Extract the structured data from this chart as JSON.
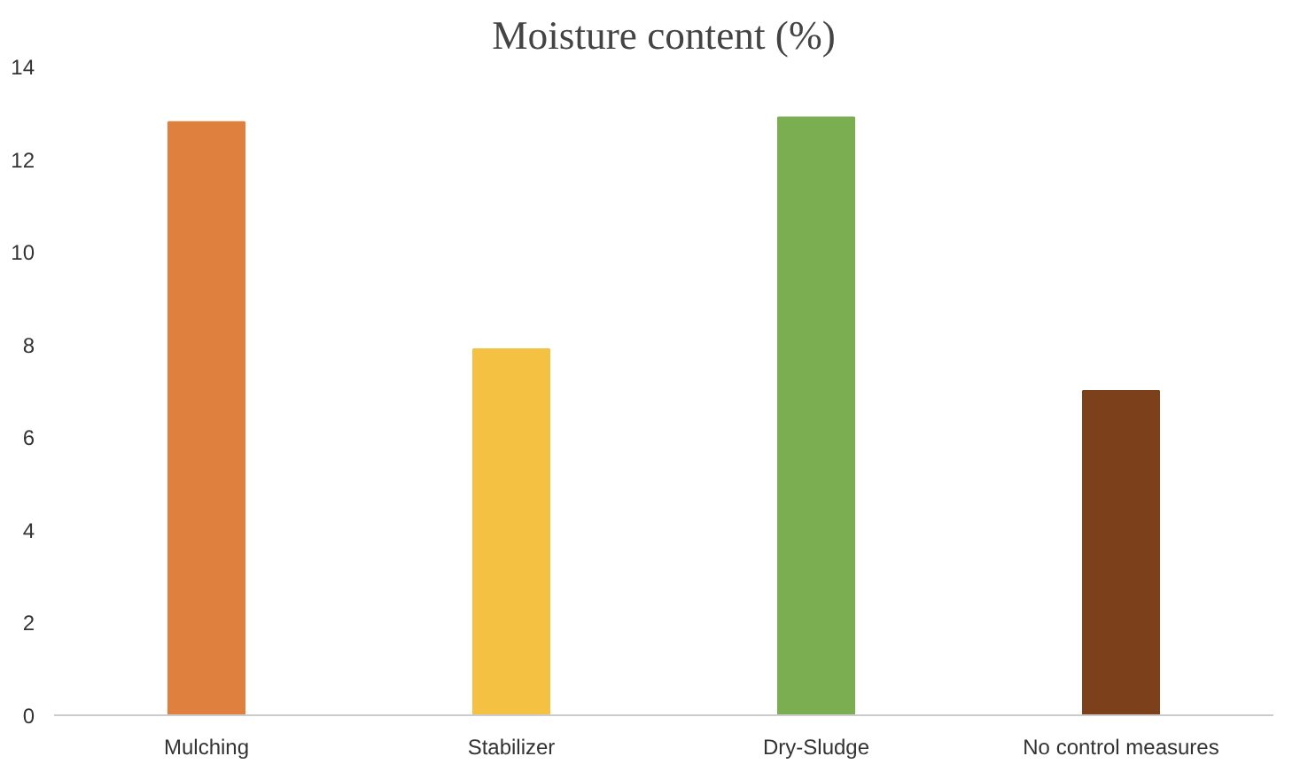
{
  "chart_data": {
    "type": "bar",
    "title": "Moisture content (%)",
    "categories": [
      "Mulching",
      "Stabilizer",
      "Dry-Sludge",
      "No control measures"
    ],
    "values": [
      12.8,
      7.9,
      12.9,
      7.0
    ],
    "colors": [
      "#e0803f",
      "#f5c142",
      "#7aae50",
      "#7c401b"
    ],
    "ylim": [
      0,
      14
    ],
    "yticks": [
      0,
      2,
      4,
      6,
      8,
      10,
      12,
      14
    ],
    "grid": false
  }
}
